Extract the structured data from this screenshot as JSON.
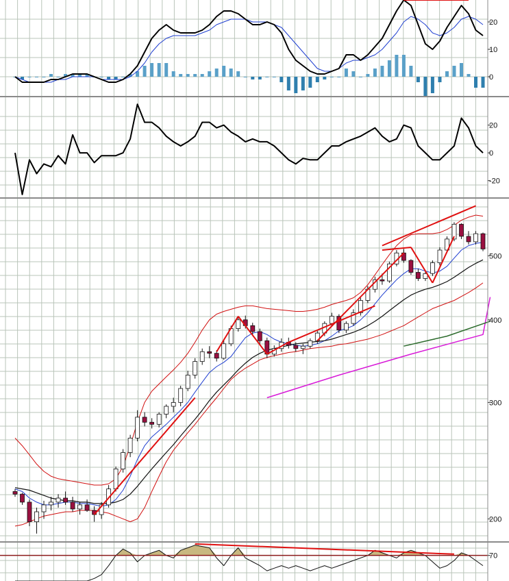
{
  "colors": {
    "background": "#ffffff",
    "grid": "#b9c4b9",
    "separator": "#8a8a8a",
    "price_ma_short": "#1f3fd0",
    "price_ma_mid": "#111111",
    "price_bands": "#d11010",
    "price_ma_long": "#d81ad8",
    "price_ma_longest": "#2b6b2b",
    "candle_up": "#ffffff",
    "candle_down": "#9a1040",
    "candle_outline": "#111111",
    "trendline": "#e01010",
    "hist_pos": "#5aa0c8",
    "hist_neg": "#2f7fae",
    "rsi_fill": "#c8b880"
  },
  "chart_data": [
    {
      "type": "line",
      "panel": "macd",
      "ylim": [
        -7,
        28
      ],
      "y_ticks": [
        0,
        10,
        20
      ],
      "series": [
        {
          "values": [
            0,
            -2,
            -2,
            -2,
            -2,
            -1,
            -1,
            0,
            1,
            1,
            1,
            0,
            -1,
            -2,
            -2,
            -1,
            1,
            4,
            9,
            14,
            17,
            19,
            17,
            16,
            16,
            16,
            17,
            19,
            22,
            24,
            24,
            23,
            21,
            19,
            19,
            20,
            19,
            16,
            10,
            6,
            4,
            2,
            1,
            1,
            2,
            3,
            8,
            8,
            6,
            8,
            11,
            14,
            19,
            24,
            28,
            26,
            19,
            12,
            10,
            13,
            18,
            22,
            26,
            23,
            17,
            15
          ]
        },
        {
          "values": [
            0,
            -1,
            -2,
            -2,
            -2,
            -2,
            -1,
            -1,
            0,
            0,
            0,
            0,
            -1,
            -1,
            -1,
            -1,
            0,
            2,
            5,
            9,
            12,
            14,
            15,
            15,
            15,
            15,
            16,
            17,
            19,
            20,
            21,
            21,
            21,
            20,
            20,
            20,
            19,
            18,
            15,
            12,
            9,
            6,
            3,
            2,
            2,
            3,
            5,
            6,
            6,
            7,
            8,
            10,
            13,
            16,
            20,
            22,
            21,
            19,
            16,
            15,
            16,
            18,
            21,
            22,
            21,
            19
          ]
        }
      ],
      "histogram": [
        0,
        -1,
        0,
        0,
        0,
        1,
        0,
        1,
        1,
        1,
        1,
        0,
        0,
        -1,
        -1,
        0,
        1,
        2,
        4,
        5,
        5,
        5,
        2,
        1,
        1,
        1,
        1,
        2,
        3,
        4,
        3,
        2,
        0,
        -1,
        -1,
        0,
        0,
        -2,
        -5,
        -6,
        -5,
        -4,
        -2,
        -1,
        0,
        0,
        3,
        2,
        0,
        1,
        3,
        4,
        6,
        8,
        8,
        4,
        -2,
        -7,
        -6,
        -2,
        2,
        4,
        5,
        1,
        -4,
        -4
      ],
      "annotations": [
        {
          "type": "trendline",
          "from": [
            54,
            28
          ],
          "to": [
            63,
            28
          ]
        }
      ]
    },
    {
      "type": "line",
      "panel": "momentum",
      "ylim": [
        -32,
        40
      ],
      "y_ticks": [
        -20,
        0,
        20
      ],
      "series": [
        {
          "values": [
            0,
            -30,
            -5,
            -15,
            -8,
            -10,
            -2,
            -8,
            13,
            0,
            0,
            -7,
            -2,
            -2,
            -2,
            0,
            10,
            35,
            22,
            22,
            18,
            12,
            8,
            5,
            8,
            12,
            22,
            22,
            18,
            20,
            15,
            12,
            8,
            10,
            8,
            8,
            5,
            0,
            -5,
            -8,
            -4,
            -5,
            -5,
            0,
            5,
            5,
            8,
            10,
            12,
            15,
            18,
            12,
            8,
            10,
            20,
            18,
            5,
            0,
            -5,
            -5,
            0,
            5,
            25,
            18,
            5,
            0
          ]
        }
      ]
    },
    {
      "type": "candlestick",
      "panel": "price",
      "scale": "log",
      "ylim": [
        185,
        610
      ],
      "y_ticks": [
        200,
        300,
        400,
        500
      ],
      "candles": [
        [
          220,
          222,
          216,
          218
        ],
        [
          218,
          219,
          210,
          212
        ],
        [
          212,
          214,
          195,
          198
        ],
        [
          198,
          208,
          190,
          205
        ],
        [
          205,
          213,
          200,
          210
        ],
        [
          210,
          216,
          206,
          212
        ],
        [
          212,
          218,
          208,
          215
        ],
        [
          215,
          220,
          210,
          212
        ],
        [
          212,
          216,
          205,
          207
        ],
        [
          207,
          212,
          203,
          210
        ],
        [
          210,
          214,
          205,
          206
        ],
        [
          206,
          209,
          198,
          203
        ],
        [
          203,
          212,
          200,
          210
        ],
        [
          210,
          225,
          208,
          222
        ],
        [
          222,
          240,
          220,
          238
        ],
        [
          238,
          255,
          235,
          252
        ],
        [
          252,
          268,
          248,
          265
        ],
        [
          265,
          292,
          262,
          285
        ],
        [
          285,
          290,
          276,
          280
        ],
        [
          280,
          284,
          274,
          278
        ],
        [
          278,
          290,
          275,
          288
        ],
        [
          288,
          298,
          284,
          296
        ],
        [
          296,
          305,
          290,
          300
        ],
        [
          300,
          318,
          296,
          315
        ],
        [
          315,
          335,
          312,
          330
        ],
        [
          330,
          350,
          326,
          346
        ],
        [
          346,
          362,
          342,
          358
        ],
        [
          358,
          365,
          350,
          356
        ],
        [
          356,
          360,
          346,
          350
        ],
        [
          350,
          372,
          348,
          368
        ],
        [
          368,
          392,
          365,
          388
        ],
        [
          388,
          405,
          384,
          400
        ],
        [
          400,
          406,
          388,
          392
        ],
        [
          392,
          396,
          380,
          384
        ],
        [
          384,
          388,
          368,
          372
        ],
        [
          372,
          376,
          350,
          355
        ],
        [
          355,
          366,
          352,
          362
        ],
        [
          362,
          375,
          358,
          370
        ],
        [
          370,
          376,
          362,
          366
        ],
        [
          366,
          370,
          358,
          362
        ],
        [
          362,
          368,
          355,
          365
        ],
        [
          365,
          375,
          362,
          372
        ],
        [
          372,
          385,
          368,
          382
        ],
        [
          382,
          398,
          378,
          395
        ],
        [
          395,
          410,
          392,
          405
        ],
        [
          405,
          408,
          382,
          386
        ],
        [
          386,
          398,
          382,
          395
        ],
        [
          395,
          415,
          392,
          410
        ],
        [
          410,
          432,
          406,
          428
        ],
        [
          428,
          450,
          424,
          445
        ],
        [
          445,
          465,
          440,
          460
        ],
        [
          460,
          470,
          452,
          458
        ],
        [
          458,
          490,
          455,
          486
        ],
        [
          486,
          510,
          482,
          505
        ],
        [
          505,
          512,
          488,
          492
        ],
        [
          492,
          494,
          468,
          472
        ],
        [
          472,
          478,
          458,
          462
        ],
        [
          462,
          475,
          458,
          470
        ],
        [
          470,
          492,
          466,
          488
        ],
        [
          488,
          515,
          484,
          510
        ],
        [
          510,
          535,
          505,
          530
        ],
        [
          530,
          562,
          526,
          558
        ],
        [
          558,
          560,
          530,
          535
        ],
        [
          535,
          545,
          520,
          525
        ],
        [
          525,
          545,
          520,
          540
        ],
        [
          540,
          542,
          508,
          512
        ]
      ],
      "overlays": [
        {
          "name": "ma_short",
          "values": [
            222,
            220,
            215,
            212,
            210,
            210,
            211,
            212,
            212,
            211,
            211,
            210,
            209,
            210,
            214,
            221,
            232,
            246,
            258,
            266,
            272,
            278,
            285,
            292,
            300,
            311,
            322,
            333,
            340,
            345,
            352,
            364,
            376,
            382,
            384,
            380,
            374,
            370,
            368,
            366,
            365,
            366,
            368,
            372,
            378,
            385,
            388,
            392,
            400,
            410,
            423,
            436,
            448,
            460,
            470,
            478,
            478,
            474,
            471,
            474,
            482,
            496,
            510,
            518,
            522,
            524
          ]
        },
        {
          "name": "ma_mid",
          "values": [
            223,
            222,
            221,
            219,
            217,
            215,
            214,
            213,
            213,
            212,
            212,
            211,
            211,
            211,
            212,
            214,
            218,
            224,
            231,
            238,
            245,
            252,
            259,
            267,
            275,
            283,
            292,
            302,
            311,
            319,
            327,
            336,
            344,
            351,
            356,
            360,
            362,
            364,
            366,
            368,
            369,
            370,
            371,
            372,
            374,
            377,
            380,
            383,
            387,
            392,
            398,
            405,
            413,
            421,
            429,
            436,
            441,
            445,
            448,
            452,
            457,
            464,
            472,
            480,
            487,
            493
          ]
        },
        {
          "name": "band_upper",
          "values": [
            265,
            258,
            250,
            242,
            236,
            232,
            230,
            229,
            228,
            227,
            226,
            225,
            225,
            226,
            230,
            240,
            258,
            280,
            300,
            312,
            320,
            328,
            336,
            345,
            356,
            370,
            386,
            400,
            408,
            412,
            415,
            418,
            420,
            420,
            418,
            416,
            415,
            414,
            413,
            412,
            412,
            413,
            415,
            418,
            422,
            425,
            428,
            432,
            440,
            452,
            468,
            485,
            502,
            518,
            530,
            538,
            540,
            540,
            540,
            542,
            548,
            556,
            566,
            572,
            576,
            574
          ]
        },
        {
          "name": "band_lower",
          "values": [
            195,
            196,
            198,
            200,
            202,
            203,
            204,
            205,
            205,
            206,
            206,
            206,
            205,
            204,
            202,
            200,
            198,
            200,
            208,
            220,
            232,
            244,
            254,
            262,
            270,
            278,
            287,
            296,
            305,
            315,
            325,
            332,
            338,
            343,
            348,
            351,
            353,
            355,
            357,
            358,
            360,
            362,
            363,
            364,
            365,
            367,
            368,
            370,
            372,
            374,
            377,
            380,
            384,
            388,
            392,
            398,
            404,
            410,
            416,
            420,
            424,
            428,
            434,
            440,
            447,
            455
          ]
        },
        {
          "name": "ma_long",
          "points": [
            [
              35,
              305
            ],
            [
              45,
              330
            ],
            [
              55,
              355
            ],
            [
              65,
              380
            ],
            [
              66,
              433
            ]
          ]
        },
        {
          "name": "ma_longest",
          "points": [
            [
              54,
              365
            ],
            [
              60,
              378
            ],
            [
              66,
              398
            ]
          ]
        }
      ],
      "annotations": [
        {
          "type": "trendline",
          "from": [
            11,
            203
          ],
          "to": [
            25,
            305
          ]
        },
        {
          "type": "trendline",
          "from": [
            28,
            358
          ],
          "to": [
            31,
            405
          ]
        },
        {
          "type": "trendline",
          "from": [
            31,
            405
          ],
          "to": [
            35,
            355
          ]
        },
        {
          "type": "trendline",
          "from": [
            35,
            355
          ],
          "to": [
            38,
            370
          ]
        },
        {
          "type": "trendline",
          "from": [
            38,
            370
          ],
          "to": [
            50,
            420
          ]
        },
        {
          "type": "trendline",
          "from": [
            42,
            372
          ],
          "to": [
            54,
            505
          ]
        },
        {
          "type": "trendline",
          "from": [
            51,
            510
          ],
          "to": [
            55,
            515
          ]
        },
        {
          "type": "trendline",
          "from": [
            55,
            515
          ],
          "to": [
            58,
            455
          ]
        },
        {
          "type": "trendline",
          "from": [
            58,
            455
          ],
          "to": [
            61,
            535
          ]
        },
        {
          "type": "trendline",
          "from": [
            51,
            518
          ],
          "to": [
            64,
            595
          ]
        }
      ]
    },
    {
      "type": "area",
      "panel": "rsi",
      "ylim": [
        50,
        80
      ],
      "y_ticks": [
        70
      ],
      "reference_line": 70,
      "values": [
        50,
        50,
        50,
        50,
        50,
        50,
        50,
        50,
        50,
        50,
        50,
        52,
        55,
        62,
        70,
        75,
        72,
        65,
        70,
        72,
        74,
        70,
        68,
        74,
        76,
        78,
        77,
        76,
        68,
        62,
        70,
        76,
        68,
        65,
        62,
        58,
        60,
        62,
        60,
        62,
        60,
        58,
        60,
        62,
        60,
        62,
        64,
        66,
        68,
        70,
        74,
        72,
        70,
        68,
        72,
        74,
        72,
        70,
        65,
        60,
        62,
        66,
        72,
        70,
        66,
        62
      ],
      "annotations": [
        {
          "type": "trendline",
          "from": [
            25,
            79
          ],
          "to": [
            61,
            71
          ]
        }
      ]
    }
  ]
}
